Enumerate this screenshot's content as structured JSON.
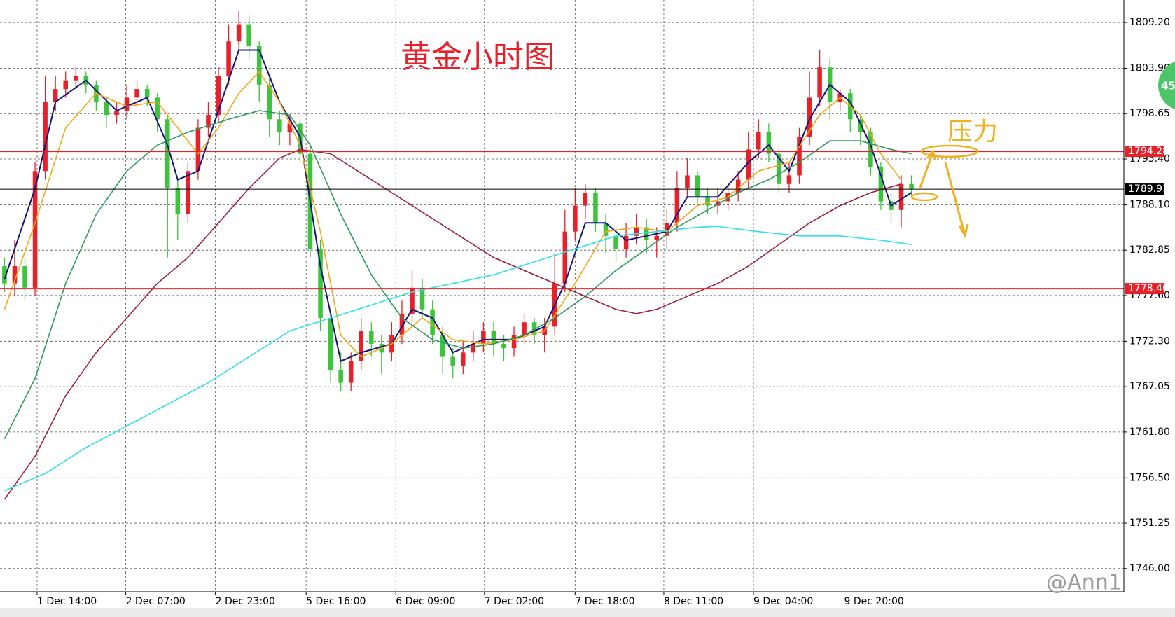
{
  "chart_data": {
    "type": "candlestick",
    "title": "黄金小时图",
    "annotation": "压力",
    "watermark": "@Ann1",
    "badge": "45",
    "up_color": "#e8202a",
    "down_color": "#3cc43c",
    "open": [
      1781,
      1779,
      1781,
      1778.5,
      1792,
      1800,
      1801.5,
      1802.5,
      1803,
      1802,
      1800,
      1798.5,
      1799,
      1800.5,
      1801.5,
      1800.5,
      1798,
      1790,
      1787,
      1792,
      1797,
      1798.5,
      1803,
      1807,
      1809,
      1806.5,
      1802,
      1798,
      1796.5,
      1797.5,
      1794,
      1783,
      1775,
      1769,
      1767.5,
      1770,
      1773.5,
      1772,
      1771,
      1773,
      1775.5,
      1778.5,
      1776,
      1773,
      1770.5,
      1769.5,
      1771,
      1772,
      1773.5,
      1772,
      1771.5,
      1773,
      1774.5,
      1773,
      1774,
      1779,
      1785,
      1788,
      1789.5,
      1786,
      1784.5,
      1783,
      1784.5,
      1785.5,
      1784,
      1784.5,
      1786,
      1790,
      1791.5,
      1789,
      1788,
      1788.5,
      1789.5,
      1791,
      1794.5,
      1796.5,
      1794,
      1790.5,
      1791.5,
      1796,
      1800.5,
      1804,
      1800,
      1801,
      1798,
      1796.5,
      1792.5,
      1788.5,
      1787.5,
      1790.5
    ],
    "high": [
      1782,
      1784,
      1782,
      1793,
      1803,
      1803,
      1803.5,
      1804,
      1803.5,
      1802.5,
      1800.5,
      1800,
      1802,
      1802.5,
      1802,
      1801,
      1798.5,
      1791,
      1793,
      1798,
      1800,
      1804,
      1809,
      1810.5,
      1810,
      1807,
      1803,
      1799,
      1798.5,
      1798,
      1795,
      1784,
      1776,
      1771,
      1771,
      1775,
      1774.5,
      1773,
      1774.5,
      1777,
      1780.5,
      1779.5,
      1777,
      1774,
      1771.5,
      1772.5,
      1773.5,
      1774.5,
      1774.5,
      1773,
      1774,
      1775.5,
      1775,
      1775,
      1782.5,
      1787.5,
      1790,
      1790.5,
      1790,
      1787,
      1785.5,
      1786,
      1787,
      1786.5,
      1785.5,
      1787.5,
      1792,
      1793.5,
      1792,
      1790,
      1790,
      1790.5,
      1792,
      1796.5,
      1798,
      1797.5,
      1795,
      1793,
      1797,
      1803.5,
      1806,
      1805,
      1801.5,
      1801.5,
      1798.5,
      1797,
      1793,
      1789.5,
      1791.5,
      1791.5
    ],
    "low": [
      1778,
      1777.5,
      1777,
      1777.5,
      1791,
      1799,
      1800.5,
      1801.5,
      1801,
      1799,
      1797,
      1797.5,
      1798,
      1799.5,
      1799.5,
      1796.5,
      1782,
      1784,
      1786,
      1791,
      1796,
      1797.5,
      1802,
      1806,
      1805,
      1800,
      1796,
      1795,
      1795,
      1793,
      1782,
      1773.5,
      1767.5,
      1766.5,
      1766.5,
      1769,
      1770.5,
      1768.5,
      1770,
      1772,
      1774.5,
      1775,
      1772,
      1768.5,
      1768,
      1768.5,
      1770,
      1771,
      1770.5,
      1770,
      1770.5,
      1772,
      1772,
      1771,
      1773,
      1778,
      1784,
      1786.5,
      1785,
      1782.5,
      1781.5,
      1782,
      1783.5,
      1782.5,
      1782,
      1783,
      1785,
      1789,
      1788,
      1787,
      1787,
      1787.5,
      1788.5,
      1790,
      1793.5,
      1793,
      1789.5,
      1789.5,
      1790.5,
      1795,
      1799.5,
      1798,
      1799,
      1796.5,
      1795,
      1791.5,
      1787.5,
      1786,
      1785.5,
      1789
    ],
    "close": [
      1779,
      1781,
      1778.5,
      1792,
      1800,
      1801.5,
      1802.5,
      1803,
      1802,
      1800,
      1798.5,
      1799,
      1800.5,
      1801.5,
      1800.5,
      1798,
      1790,
      1787,
      1792,
      1797,
      1798.5,
      1803,
      1807,
      1809,
      1806.5,
      1802,
      1798,
      1796.5,
      1797.5,
      1794,
      1783,
      1775,
      1769,
      1767.5,
      1770,
      1773.5,
      1772,
      1771,
      1773,
      1775.5,
      1778.5,
      1776,
      1773,
      1770.5,
      1769.5,
      1771,
      1772,
      1773.5,
      1772,
      1771.5,
      1773,
      1774.5,
      1773,
      1774,
      1779,
      1785,
      1788,
      1789.5,
      1786,
      1784.5,
      1783,
      1784.5,
      1785.5,
      1784,
      1784.5,
      1786,
      1790,
      1791.5,
      1789,
      1788,
      1788.5,
      1789.5,
      1791,
      1794.5,
      1796.5,
      1794,
      1790.5,
      1791.5,
      1796,
      1800.5,
      1804,
      1800,
      1801,
      1798,
      1796.5,
      1792.5,
      1788.5,
      1787.5,
      1790.5,
      1789.91
    ],
    "series": [
      {
        "color": "#15157a",
        "x": [
          0,
          3,
          5,
          8,
          11,
          14,
          16,
          17,
          19,
          21,
          23,
          25,
          27,
          29,
          31,
          33,
          35,
          38,
          40,
          42,
          44,
          47,
          50,
          53,
          55,
          57,
          59,
          61,
          63,
          65,
          67,
          70,
          73,
          75,
          77,
          79,
          81,
          83,
          85,
          87,
          89
        ],
        "values": [
          1779.5,
          1790,
          1800,
          1802.5,
          1799,
          1800.5,
          1795,
          1791,
          1792,
          1799,
          1806,
          1806,
          1800,
          1796,
          1781,
          1770,
          1771,
          1772,
          1776,
          1775,
          1771,
          1772.5,
          1772.5,
          1774,
          1779,
          1786,
          1786,
          1784,
          1784.5,
          1785,
          1789,
          1789,
          1793,
          1795,
          1792,
          1798,
          1802,
          1800,
          1795,
          1788,
          1789.5
        ]
      },
      {
        "color": "#f0a818",
        "x": [
          0,
          3,
          6,
          9,
          12,
          15,
          17,
          19,
          21,
          23,
          25,
          27,
          29,
          31,
          33,
          35,
          38,
          41,
          44,
          47,
          50,
          53,
          56,
          59,
          62,
          65,
          68,
          71,
          74,
          77,
          80,
          82,
          84,
          86,
          88
        ],
        "values": [
          1776,
          1786,
          1797,
          1801,
          1799.5,
          1800,
          1797,
          1794,
          1797,
          1801,
          1803.5,
          1800,
          1795,
          1785,
          1773,
          1770.5,
          1772,
          1775,
          1772.5,
          1772,
          1772.5,
          1773.5,
          1779,
          1785,
          1785.5,
          1785,
          1788,
          1789,
          1792,
          1793,
          1798.5,
          1800.5,
          1798.5,
          1794,
          1791
        ]
      },
      {
        "color": "#2e9a5e",
        "x": [
          0,
          3,
          6,
          9,
          12,
          15,
          18,
          22,
          25,
          28,
          30,
          33,
          36,
          39,
          42,
          45,
          48,
          51,
          54,
          57,
          60,
          63,
          66,
          69,
          72,
          75,
          78,
          81,
          84,
          87,
          89
        ],
        "values": [
          1761,
          1768,
          1779,
          1787,
          1792,
          1795,
          1796.5,
          1798,
          1799,
          1798.5,
          1795,
          1787,
          1780,
          1775,
          1772.5,
          1771.5,
          1772,
          1773,
          1775,
          1777.5,
          1780.5,
          1783,
          1785.5,
          1787.5,
          1789.5,
          1791,
          1793,
          1795.5,
          1795.5,
          1794.5,
          1794
        ]
      },
      {
        "color": "#a0203c",
        "x": [
          0,
          3,
          6,
          9,
          12,
          15,
          18,
          21,
          24,
          27,
          29,
          32,
          36,
          40,
          44,
          48,
          52,
          56,
          60,
          62,
          64,
          67,
          70,
          73,
          76,
          79,
          82,
          85,
          88
        ],
        "values": [
          1754,
          1759,
          1766,
          1771,
          1775,
          1779,
          1782,
          1786,
          1790,
          1793.5,
          1794.5,
          1794,
          1791,
          1788,
          1785,
          1782,
          1780,
          1778,
          1776,
          1775.5,
          1776,
          1777.5,
          1779,
          1781,
          1783.5,
          1786,
          1788,
          1789.5,
          1790.5
        ]
      },
      {
        "color": "#30e0e8",
        "x": [
          0,
          4,
          8,
          12,
          16,
          20,
          24,
          28,
          32,
          36,
          40,
          44,
          48,
          52,
          56,
          60,
          64,
          68,
          70,
          74,
          78,
          82,
          86,
          89
        ],
        "values": [
          1755,
          1757,
          1760,
          1762.5,
          1765,
          1767.5,
          1770.5,
          1773.5,
          1775,
          1776.5,
          1778,
          1779,
          1780,
          1781.5,
          1783,
          1784.5,
          1785,
          1785.5,
          1785.6,
          1785,
          1784.5,
          1784.5,
          1784,
          1783.5
        ]
      }
    ],
    "hlines": [
      {
        "value": 1794.28,
        "color": "#e8202a"
      },
      {
        "value": 1778.4,
        "label": "1778.40",
        "color": "#e8202a"
      },
      {
        "value": 1789.91,
        "color": "#000000"
      }
    ],
    "xlim": [
      -0.44,
      109.85
    ],
    "ylim": [
      1743.31,
      1811.8
    ],
    "xticks": [
      {
        "value": 3.2,
        "label": "1 Dec 14:00"
      },
      {
        "value": 11.9,
        "label": "2 Dec 07:00"
      },
      {
        "value": 20.7,
        "label": "2 Dec 23:00"
      },
      {
        "value": 29.6,
        "label": "5 Dec 16:00"
      },
      {
        "value": 38.4,
        "label": "6 Dec 09:00"
      },
      {
        "value": 47.1,
        "label": "7 Dec 02:00"
      },
      {
        "value": 56,
        "label": "7 Dec 18:00"
      },
      {
        "value": 64.7,
        "label": "8 Dec 11:00"
      },
      {
        "value": 73.5,
        "label": "9 Dec 04:00"
      },
      {
        "value": 82.4,
        "label": "9 Dec 20:00"
      }
    ],
    "yticks": [
      {
        "value": 1809.2,
        "label": "1809.20"
      },
      {
        "value": 1803.9,
        "label": "1803.90"
      },
      1798.65,
      {
        "value": 1793.4,
        "label": "1793.40"
      },
      {
        "value": 1788.1,
        "label": "1788.10"
      },
      1782.85,
      {
        "value": 1777.6,
        "label": "1777.60"
      },
      {
        "value": 1772.3,
        "label": "1772.30"
      },
      1767.05,
      {
        "value": 1761.8,
        "label": "1761.80"
      },
      {
        "value": 1756.5,
        "label": "1756.50"
      },
      1751.25,
      {
        "value": 1746,
        "label": "1746.00"
      }
    ],
    "grid": true
  }
}
